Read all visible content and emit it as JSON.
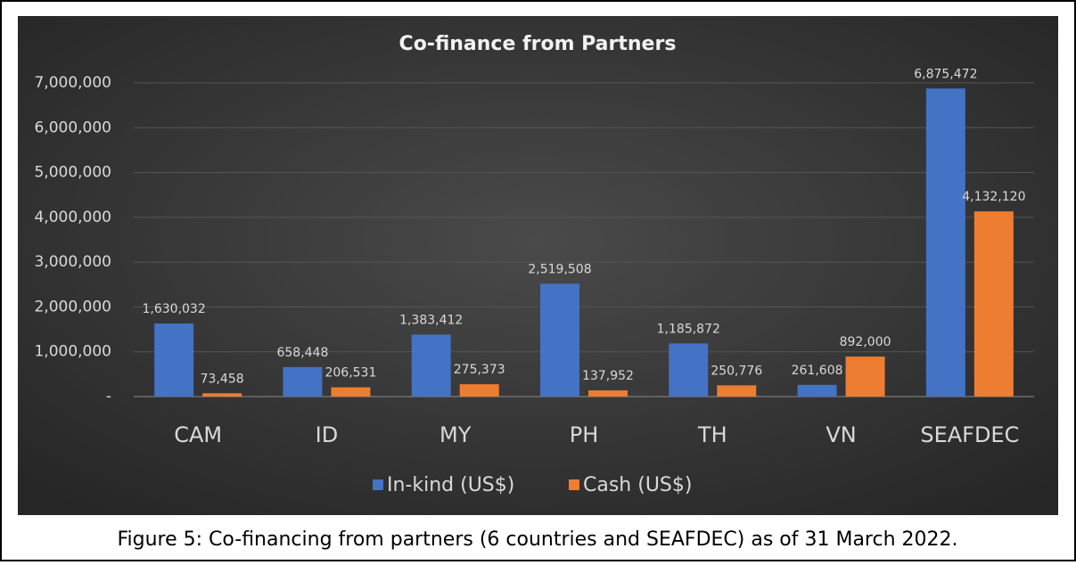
{
  "chart_data": {
    "type": "bar",
    "title": "Co-finance from Partners",
    "categories": [
      "CAM",
      "ID",
      "MY",
      "PH",
      "TH",
      "VN",
      "SEAFDEC"
    ],
    "series": [
      {
        "name": "In-kind (US$)",
        "color": "#4472c4",
        "values": [
          1630032,
          658448,
          1383412,
          2519508,
          1185872,
          261608,
          6875472
        ],
        "value_labels": [
          "1,630,032",
          "658,448",
          "1,383,412",
          "2,519,508",
          "1,185,872",
          "261,608",
          "6,875,472"
        ]
      },
      {
        "name": "Cash (US$)",
        "color": "#ed7d31",
        "values": [
          73458,
          206531,
          275373,
          137952,
          250776,
          892000,
          4132120
        ],
        "value_labels": [
          "73,458",
          "206,531",
          "275,373",
          "137,952",
          "250,776",
          "892,000",
          "4,132,120"
        ]
      }
    ],
    "ylim": [
      0,
      7000000
    ],
    "yticks": [
      {
        "value": 0,
        "label": "-"
      },
      {
        "value": 1000000,
        "label": "1,000,000"
      },
      {
        "value": 2000000,
        "label": "2,000,000"
      },
      {
        "value": 3000000,
        "label": "3,000,000"
      },
      {
        "value": 4000000,
        "label": "4,000,000"
      },
      {
        "value": 5000000,
        "label": "5,000,000"
      },
      {
        "value": 6000000,
        "label": "6,000,000"
      },
      {
        "value": 7000000,
        "label": "7,000,000"
      }
    ],
    "grid": true,
    "legend": "bottom",
    "caption": "Figure 5: Co-financing from partners (6 countries and SEAFDEC) as of 31 March 2022."
  }
}
